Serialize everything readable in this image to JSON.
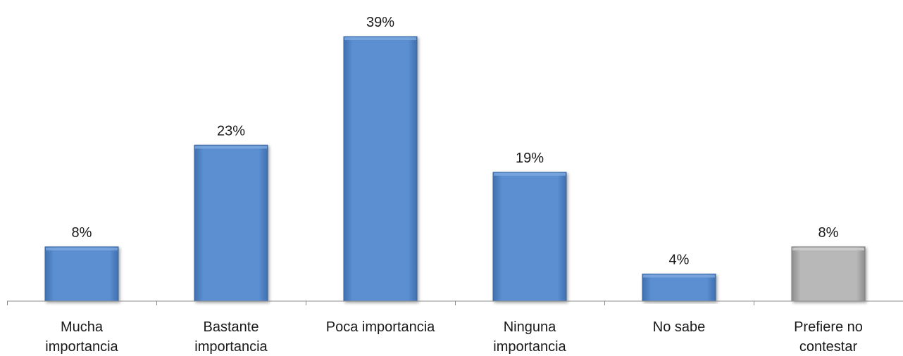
{
  "chart_data": {
    "type": "bar",
    "categories": [
      [
        "Mucha",
        "importancia"
      ],
      [
        "Bastante",
        "importancia"
      ],
      [
        "Poca importancia"
      ],
      [
        "Ninguna",
        "importancia"
      ],
      [
        "No sabe"
      ],
      [
        "Prefiere no",
        "contestar"
      ]
    ],
    "values": [
      8,
      23,
      39,
      19,
      4,
      8
    ],
    "data_labels": [
      "8%",
      "23%",
      "39%",
      "19%",
      "4%",
      "8%"
    ],
    "bar_colors": [
      "#5a8ccc",
      "#5a8ccc",
      "#5a8ccc",
      "#5a8ccc",
      "#5a8ccc",
      "#b5b5b5"
    ],
    "ylim": [
      0,
      39
    ],
    "grid": false,
    "legend": "none"
  }
}
